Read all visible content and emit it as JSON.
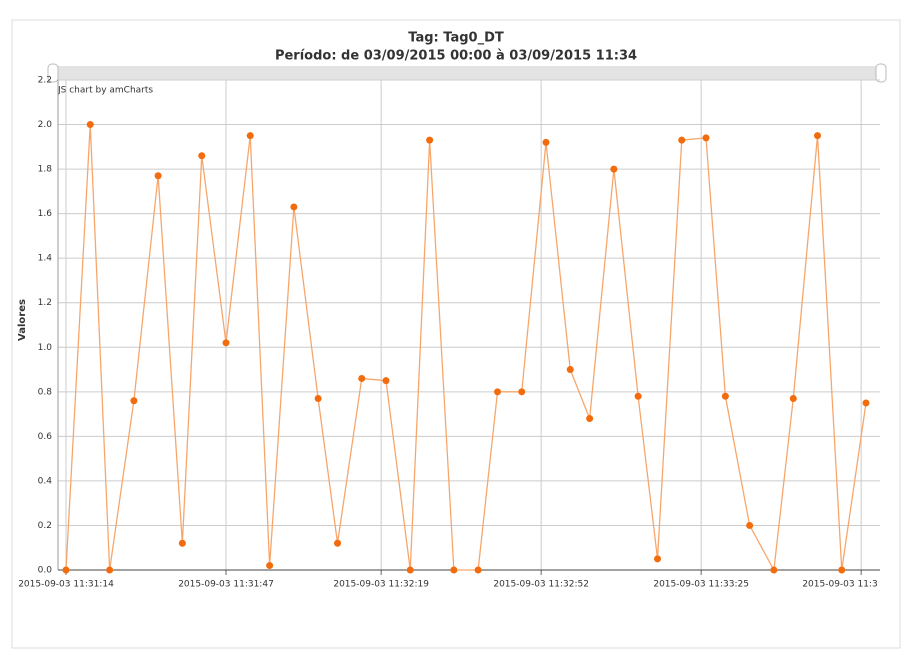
{
  "chart_data": {
    "type": "line",
    "title": "Tag: Tag0_DT",
    "subtitle": "Período: de  03/09/2015 00:00  à  03/09/2015 11:34",
    "y_label": "Valores",
    "credit": "JS chart by amCharts",
    "x": [
      "2015-09-03 11:31:14",
      "2015-09-03 11:31:19",
      "2015-09-03 11:31:23",
      "2015-09-03 11:31:28",
      "2015-09-03 11:31:33",
      "2015-09-03 11:31:38",
      "2015-09-03 11:31:42",
      "2015-09-03 11:31:47",
      "2015-09-03 11:31:52",
      "2015-09-03 11:31:56",
      "2015-09-03 11:32:01",
      "2015-09-03 11:32:06",
      "2015-09-03 11:32:10",
      "2015-09-03 11:32:15",
      "2015-09-03 11:32:20",
      "2015-09-03 11:32:25",
      "2015-09-03 11:32:29",
      "2015-09-03 11:32:34",
      "2015-09-03 11:32:39",
      "2015-09-03 11:32:43",
      "2015-09-03 11:32:48",
      "2015-09-03 11:32:53",
      "2015-09-03 11:32:58",
      "2015-09-03 11:33:02",
      "2015-09-03 11:33:07",
      "2015-09-03 11:33:12",
      "2015-09-03 11:33:16",
      "2015-09-03 11:33:21",
      "2015-09-03 11:33:26",
      "2015-09-03 11:33:30",
      "2015-09-03 11:33:35",
      "2015-09-03 11:33:40",
      "2015-09-03 11:33:44",
      "2015-09-03 11:33:49",
      "2015-09-03 11:33:54",
      "2015-09-03 11:33:59"
    ],
    "series": [
      {
        "name": "Tag0_DT",
        "color": "#f26c0d",
        "line_color": "#f7a66b",
        "values": [
          0.0,
          2.0,
          0.0,
          0.76,
          1.77,
          0.12,
          1.86,
          1.02,
          1.95,
          0.02,
          1.63,
          0.77,
          0.12,
          0.86,
          0.85,
          0.0,
          1.93,
          0.0,
          0.0,
          0.8,
          0.8,
          1.92,
          0.9,
          0.68,
          1.8,
          0.78,
          0.05,
          1.93,
          1.94,
          0.78,
          0.2,
          0.0,
          0.77,
          1.95,
          0.0,
          0.75
        ]
      }
    ],
    "xlim": [
      "2015-09-03 11:31:14",
      "2015-09-03 11:33:59"
    ],
    "xticks": [
      "2015-09-03 11:31:14",
      "2015-09-03 11:31:47",
      "2015-09-03 11:32:19",
      "2015-09-03 11:32:52",
      "2015-09-03 11:33:25",
      {
        "value": "2015-09-03 11:33:58",
        "label": "2015-09-03 11:3"
      }
    ],
    "ylim": [
      0,
      2.2
    ],
    "yticks": [
      {
        "value": 0,
        "label": "0.0"
      },
      0.2,
      0.4,
      0.6,
      0.8,
      {
        "value": 1,
        "label": "1.0"
      },
      1.2,
      1.4,
      1.6,
      1.8,
      {
        "value": 2,
        "label": "2.0"
      },
      2.2
    ],
    "grid": true
  }
}
